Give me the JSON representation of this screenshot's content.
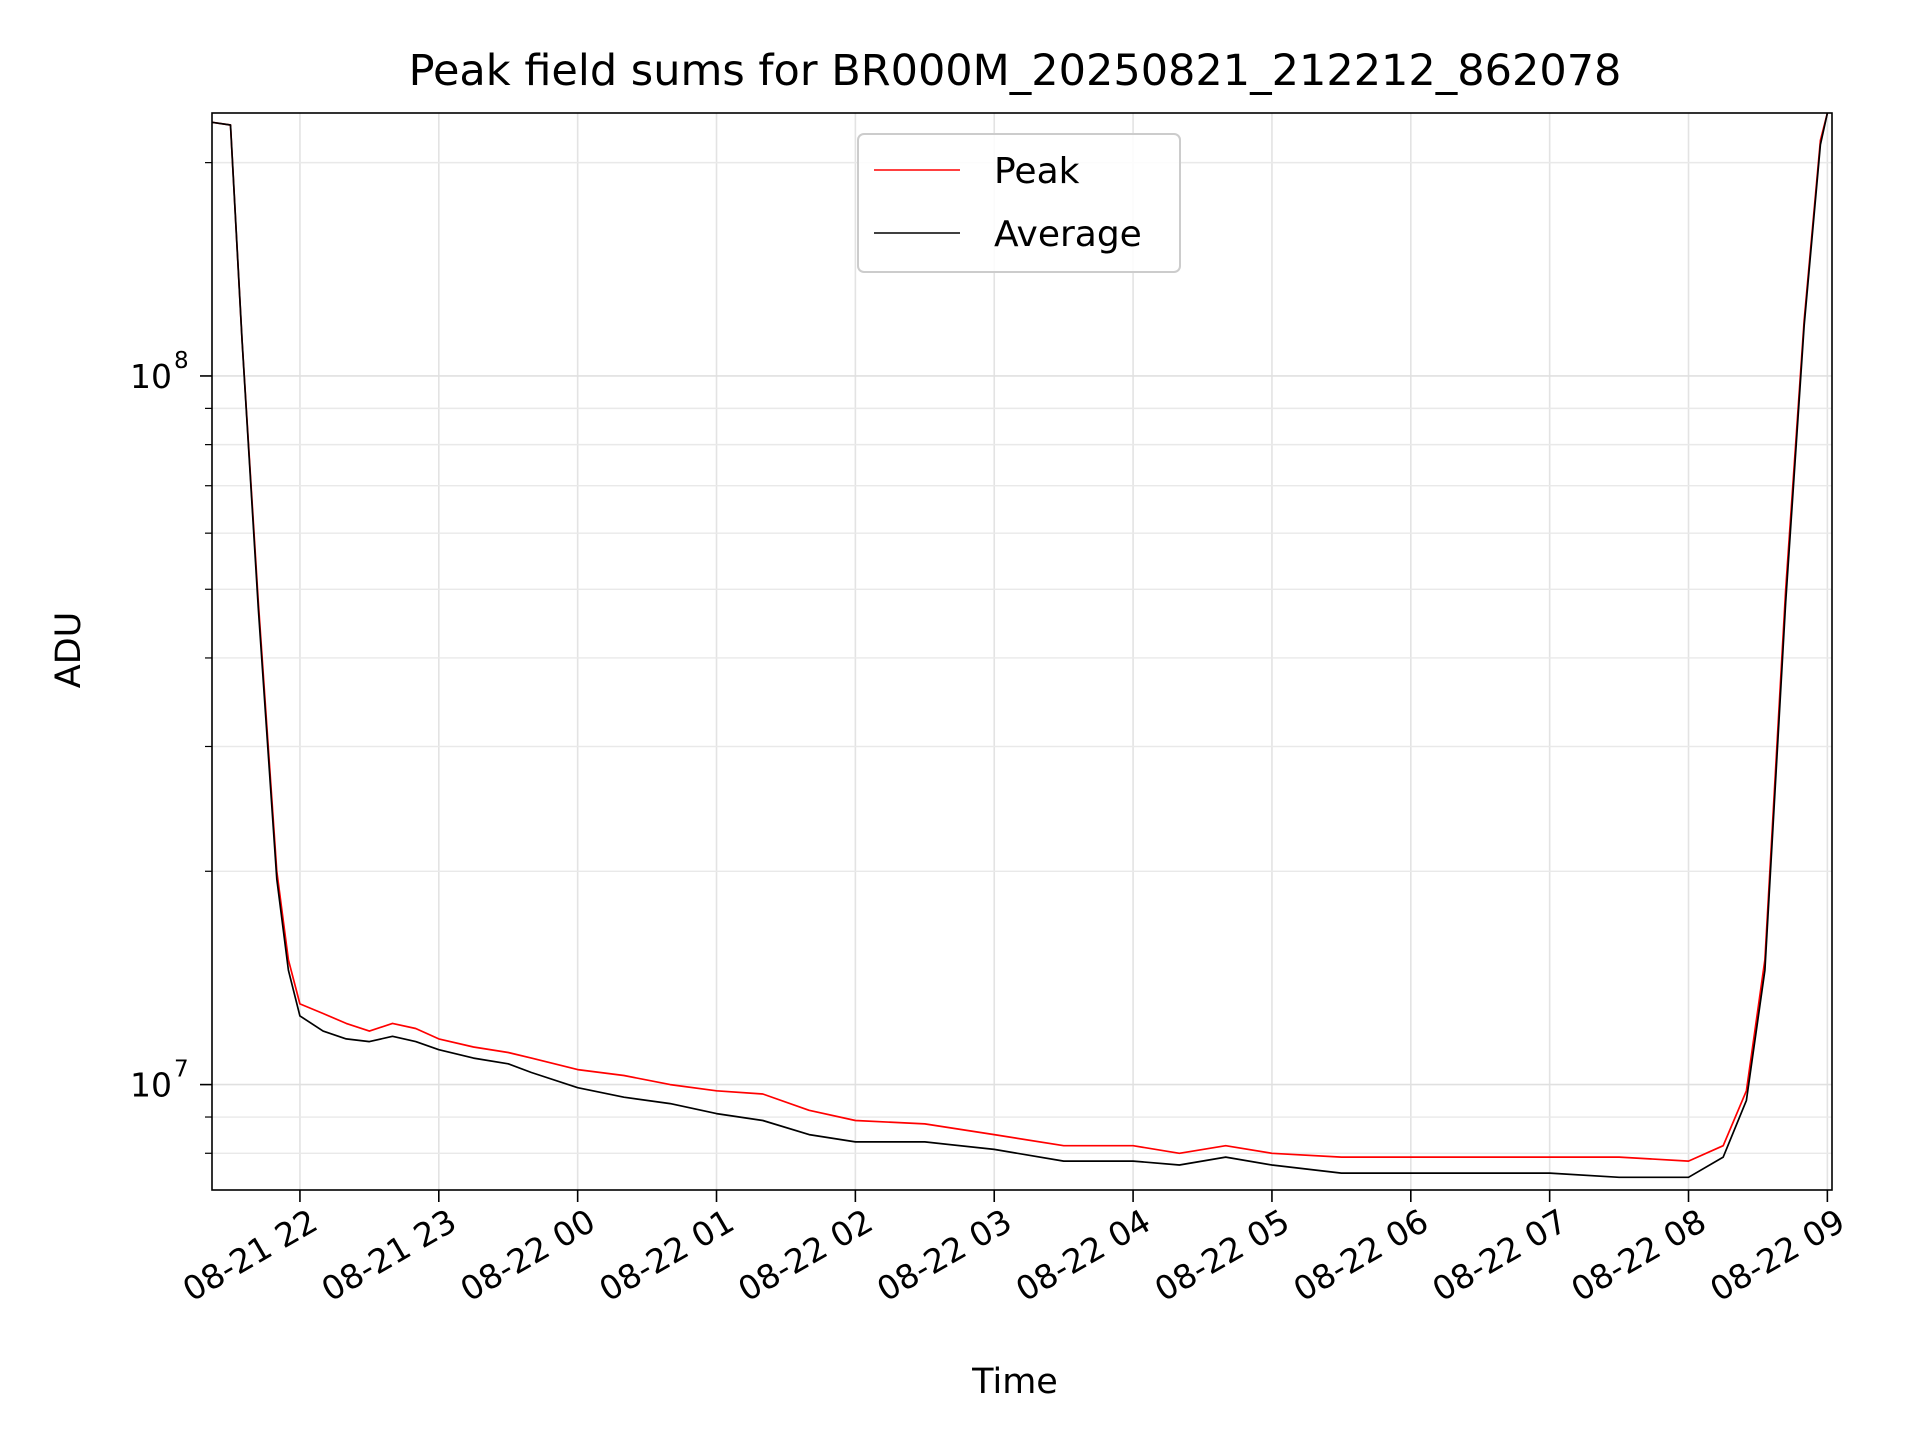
{
  "chart_data": {
    "type": "line",
    "title": "Peak field sums for BR000M_20250821_212212_862078",
    "xlabel": "Time",
    "ylabel": "ADU",
    "yscale": "log",
    "grid": true,
    "legend_position": "top-center",
    "xlim": [
      "2025-08-21 21:22",
      "2025-08-22 09:02"
    ],
    "ylim": [
      7100000,
      235000000
    ],
    "x_ticks": [
      {
        "value": "2025-08-21 22:00",
        "label": "08-21 22"
      },
      {
        "value": "2025-08-21 23:00",
        "label": "08-21 23"
      },
      {
        "value": "2025-08-22 00:00",
        "label": "08-22 00"
      },
      {
        "value": "2025-08-22 01:00",
        "label": "08-22 01"
      },
      {
        "value": "2025-08-22 02:00",
        "label": "08-22 02"
      },
      {
        "value": "2025-08-22 03:00",
        "label": "08-22 03"
      },
      {
        "value": "2025-08-22 04:00",
        "label": "08-22 04"
      },
      {
        "value": "2025-08-22 05:00",
        "label": "08-22 05"
      },
      {
        "value": "2025-08-22 06:00",
        "label": "08-22 06"
      },
      {
        "value": "2025-08-22 07:00",
        "label": "08-22 07"
      },
      {
        "value": "2025-08-22 08:00",
        "label": "08-22 08"
      },
      {
        "value": "2025-08-22 09:00",
        "label": "08-22 09"
      }
    ],
    "y_ticks": [
      {
        "value": 10000000,
        "label": "10",
        "exponent": "7"
      },
      {
        "value": 100000000,
        "label": "10",
        "exponent": "8"
      }
    ],
    "series": [
      {
        "name": "Peak",
        "color": "#ff0000",
        "points": [
          [
            "2025-08-21 21:22",
            228000000
          ],
          [
            "2025-08-21 21:30",
            226000000
          ],
          [
            "2025-08-21 21:35",
            112000000
          ],
          [
            "2025-08-21 21:42",
            48000000
          ],
          [
            "2025-08-21 21:50",
            20000000
          ],
          [
            "2025-08-21 21:55",
            15000000
          ],
          [
            "2025-08-21 22:00",
            13000000
          ],
          [
            "2025-08-21 22:10",
            12600000
          ],
          [
            "2025-08-21 22:20",
            12200000
          ],
          [
            "2025-08-21 22:30",
            11900000
          ],
          [
            "2025-08-21 22:40",
            12200000
          ],
          [
            "2025-08-21 22:50",
            12000000
          ],
          [
            "2025-08-21 23:00",
            11600000
          ],
          [
            "2025-08-21 23:15",
            11300000
          ],
          [
            "2025-08-21 23:30",
            11100000
          ],
          [
            "2025-08-21 23:40",
            10900000
          ],
          [
            "2025-08-22 00:00",
            10500000
          ],
          [
            "2025-08-22 00:20",
            10300000
          ],
          [
            "2025-08-22 00:40",
            10000000
          ],
          [
            "2025-08-22 01:00",
            9800000
          ],
          [
            "2025-08-22 01:20",
            9700000
          ],
          [
            "2025-08-22 01:40",
            9200000
          ],
          [
            "2025-08-22 02:00",
            8900000
          ],
          [
            "2025-08-22 02:30",
            8800000
          ],
          [
            "2025-08-22 03:00",
            8500000
          ],
          [
            "2025-08-22 03:30",
            8200000
          ],
          [
            "2025-08-22 04:00",
            8200000
          ],
          [
            "2025-08-22 04:20",
            8000000
          ],
          [
            "2025-08-22 04:40",
            8200000
          ],
          [
            "2025-08-22 05:00",
            8000000
          ],
          [
            "2025-08-22 05:30",
            7900000
          ],
          [
            "2025-08-22 06:00",
            7900000
          ],
          [
            "2025-08-22 06:30",
            7900000
          ],
          [
            "2025-08-22 07:00",
            7900000
          ],
          [
            "2025-08-22 07:30",
            7900000
          ],
          [
            "2025-08-22 08:00",
            7800000
          ],
          [
            "2025-08-22 08:15",
            8200000
          ],
          [
            "2025-08-22 08:25",
            9800000
          ],
          [
            "2025-08-22 08:33",
            15000000
          ],
          [
            "2025-08-22 08:42",
            50000000
          ],
          [
            "2025-08-22 08:50",
            120000000
          ],
          [
            "2025-08-22 08:57",
            215000000
          ],
          [
            "2025-08-22 09:00",
            235000000
          ]
        ]
      },
      {
        "name": "Average",
        "color": "#000000",
        "points": [
          [
            "2025-08-21 21:22",
            228000000
          ],
          [
            "2025-08-21 21:30",
            226000000
          ],
          [
            "2025-08-21 21:35",
            112000000
          ],
          [
            "2025-08-21 21:42",
            47000000
          ],
          [
            "2025-08-21 21:50",
            19500000
          ],
          [
            "2025-08-21 21:55",
            14500000
          ],
          [
            "2025-08-21 22:00",
            12500000
          ],
          [
            "2025-08-21 22:10",
            11900000
          ],
          [
            "2025-08-21 22:20",
            11600000
          ],
          [
            "2025-08-21 22:30",
            11500000
          ],
          [
            "2025-08-21 22:40",
            11700000
          ],
          [
            "2025-08-21 22:50",
            11500000
          ],
          [
            "2025-08-21 23:00",
            11200000
          ],
          [
            "2025-08-21 23:15",
            10900000
          ],
          [
            "2025-08-21 23:30",
            10700000
          ],
          [
            "2025-08-21 23:40",
            10400000
          ],
          [
            "2025-08-22 00:00",
            9900000
          ],
          [
            "2025-08-22 00:20",
            9600000
          ],
          [
            "2025-08-22 00:40",
            9400000
          ],
          [
            "2025-08-22 01:00",
            9100000
          ],
          [
            "2025-08-22 01:20",
            8900000
          ],
          [
            "2025-08-22 01:40",
            8500000
          ],
          [
            "2025-08-22 02:00",
            8300000
          ],
          [
            "2025-08-22 02:30",
            8300000
          ],
          [
            "2025-08-22 03:00",
            8100000
          ],
          [
            "2025-08-22 03:30",
            7800000
          ],
          [
            "2025-08-22 04:00",
            7800000
          ],
          [
            "2025-08-22 04:20",
            7700000
          ],
          [
            "2025-08-22 04:40",
            7900000
          ],
          [
            "2025-08-22 05:00",
            7700000
          ],
          [
            "2025-08-22 05:30",
            7500000
          ],
          [
            "2025-08-22 06:00",
            7500000
          ],
          [
            "2025-08-22 06:30",
            7500000
          ],
          [
            "2025-08-22 07:00",
            7500000
          ],
          [
            "2025-08-22 07:30",
            7400000
          ],
          [
            "2025-08-22 08:00",
            7400000
          ],
          [
            "2025-08-22 08:15",
            7900000
          ],
          [
            "2025-08-22 08:25",
            9500000
          ],
          [
            "2025-08-22 08:33",
            14500000
          ],
          [
            "2025-08-22 08:42",
            48000000
          ],
          [
            "2025-08-22 08:50",
            118000000
          ],
          [
            "2025-08-22 08:57",
            212000000
          ],
          [
            "2025-08-22 09:00",
            235000000
          ]
        ]
      }
    ]
  }
}
